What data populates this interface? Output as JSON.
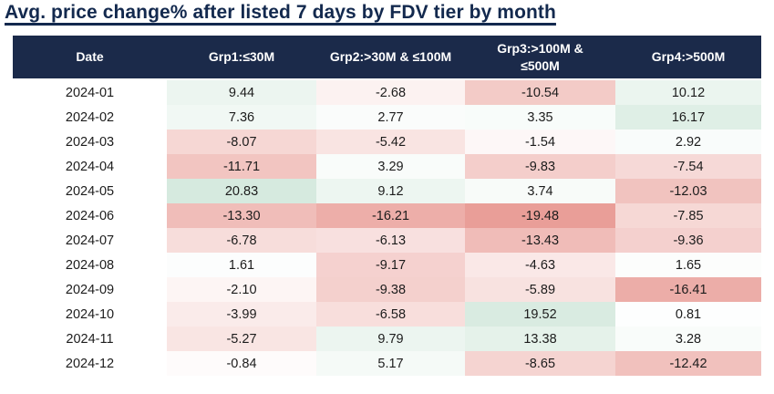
{
  "title": "Avg. price change% after listed 7 days by FDV tier by month",
  "colors": {
    "title_text": "#13294e",
    "header_bg": "#1b2a4a",
    "header_text": "#ffffff",
    "cell_text": "#1c1c1c",
    "negative_full": "#e99e98",
    "positive_full": "#d6eadf",
    "midpoint": "#ffffff"
  },
  "chart_data": {
    "type": "heatmap",
    "title": "Avg. price change% after listed 7 days by FDV tier by month",
    "columns": [
      "Date",
      "Grp1:≤30M",
      "Grp2:>30M & ≤100M",
      "Grp3:>100M & ≤500M",
      "Grp4:>500M"
    ],
    "categories": [
      "2024-01",
      "2024-02",
      "2024-03",
      "2024-04",
      "2024-05",
      "2024-06",
      "2024-07",
      "2024-08",
      "2024-09",
      "2024-10",
      "2024-11",
      "2024-12"
    ],
    "series": [
      {
        "name": "Grp1:≤30M",
        "values": [
          9.44,
          7.36,
          -8.07,
          -11.71,
          20.83,
          -13.3,
          -6.78,
          1.61,
          -2.1,
          -3.99,
          -5.27,
          -0.84
        ]
      },
      {
        "name": "Grp2:>30M & ≤100M",
        "values": [
          -2.68,
          2.77,
          -5.42,
          3.29,
          9.12,
          -16.21,
          -6.13,
          -9.17,
          -9.38,
          -6.58,
          9.79,
          5.17
        ]
      },
      {
        "name": "Grp3:>100M & ≤500M",
        "values": [
          -10.54,
          3.35,
          -1.54,
          -9.83,
          3.74,
          -19.48,
          -13.43,
          -4.63,
          -5.89,
          19.52,
          13.38,
          -8.65
        ]
      },
      {
        "name": "Grp4:>500M",
        "values": [
          10.12,
          16.17,
          2.92,
          -7.54,
          -12.03,
          -7.85,
          -9.36,
          1.65,
          -16.41,
          0.81,
          3.28,
          -12.42
        ]
      }
    ],
    "color_scale": {
      "min": -19.48,
      "max": 20.83,
      "negative_color": "#e99e98",
      "midpoint_color": "#ffffff",
      "positive_color": "#d6eadf"
    },
    "value_format": "2-decimals",
    "grid": false,
    "legend": false
  }
}
